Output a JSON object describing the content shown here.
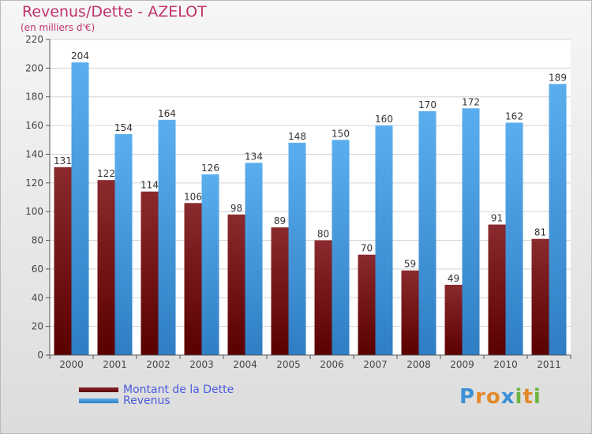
{
  "chart_data": {
    "type": "bar",
    "title": "Revenus/Dette - AZELOT",
    "subtitle": "(en milliers d'€)",
    "categories": [
      "2000",
      "2001",
      "2002",
      "2003",
      "2004",
      "2005",
      "2006",
      "2007",
      "2008",
      "2009",
      "2010",
      "2011"
    ],
    "series": [
      {
        "name": "Montant de la Dette",
        "color": "#7a1a1f",
        "values": [
          131,
          122,
          114,
          106,
          98,
          89,
          80,
          70,
          59,
          49,
          91,
          81
        ]
      },
      {
        "name": "Revenus",
        "color": "#4aa3e8",
        "values": [
          204,
          154,
          164,
          126,
          134,
          148,
          150,
          160,
          170,
          172,
          162,
          189
        ]
      }
    ],
    "ylim": [
      0,
      220
    ],
    "yticks": [
      0,
      20,
      40,
      60,
      80,
      100,
      120,
      140,
      160,
      180,
      200,
      220
    ],
    "grid": true,
    "legend_position": "bottom-left"
  },
  "branding": {
    "letters": [
      "P",
      "r",
      "o",
      "x",
      "i",
      "t",
      "i"
    ],
    "colors": [
      "#3b8fd6",
      "#e2892b",
      "#e2892b",
      "#3b8fd6",
      "#6db33f",
      "#e2892b",
      "#6db33f"
    ]
  }
}
